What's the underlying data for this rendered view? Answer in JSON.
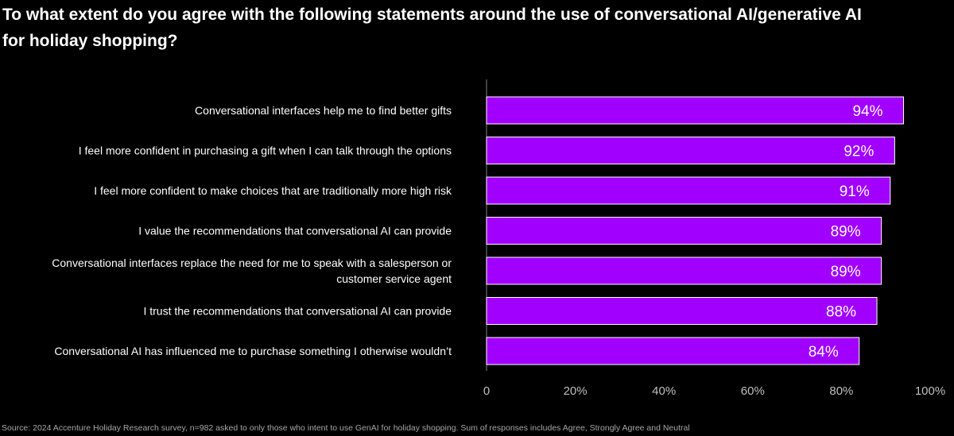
{
  "chart_data": {
    "type": "bar",
    "orientation": "horizontal",
    "title": "To what extent do you agree with the following statements around the use of conversational AI/generative AI for holiday shopping?",
    "categories": [
      "Conversational interfaces help me to find better gifts",
      "I feel more confident in purchasing a gift when I can talk through the options",
      "I feel more confident to make choices that are traditionally more high risk",
      "I value the recommendations that conversational AI can provide",
      "Conversational interfaces replace the need for me to speak with a salesperson or customer service agent",
      "I trust the recommendations that conversational AI can provide",
      "Conversational AI has influenced me to purchase something I otherwise wouldn’t"
    ],
    "category_lines": [
      [
        "Conversational interfaces help me to find better gifts"
      ],
      [
        "I feel more confident in purchasing a gift when I can talk through the options"
      ],
      [
        "I feel more confident to make choices that are traditionally more high risk"
      ],
      [
        "I value the recommendations that conversational AI can provide"
      ],
      [
        "Conversational interfaces replace the need for me to speak with a salesperson or",
        "customer service agent"
      ],
      [
        "I trust the recommendations that conversational AI can provide"
      ],
      [
        "Conversational AI has influenced me to purchase something I otherwise wouldn’t"
      ]
    ],
    "values": [
      94,
      92,
      91,
      89,
      89,
      88,
      84
    ],
    "value_labels": [
      "94%",
      "92%",
      "91%",
      "89%",
      "89%",
      "88%",
      "84%"
    ],
    "xlim": [
      0,
      100
    ],
    "xticks": [
      0,
      20,
      40,
      60,
      80,
      100
    ],
    "xtick_labels": [
      "0",
      "20%",
      "40%",
      "60%",
      "80%",
      "100%"
    ],
    "grid": false,
    "legend": "none",
    "xlabel": "",
    "ylabel": ""
  },
  "colors": {
    "background": "#000000",
    "bar_fill": "#a100ff",
    "bar_stroke": "#ffffff",
    "text": "#ffffff",
    "tick_text": "#bfbfbf",
    "axis_line": "#7f7f7f"
  },
  "source_note": "Source: 2024 Accenture Holiday Research survey, n=982 asked to only those who intent to use GenAI for holiday shopping. Sum of responses includes Agree, Strongly Agree and Neutral"
}
